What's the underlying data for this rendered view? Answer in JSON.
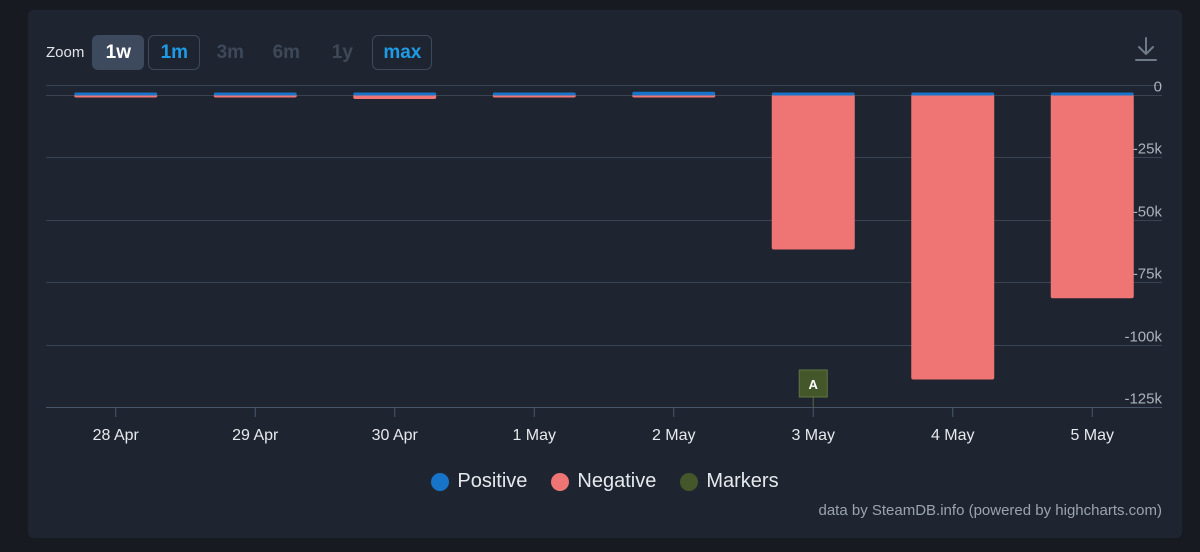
{
  "toolbar": {
    "zoom_label": "Zoom",
    "zoom_buttons": [
      {
        "label": "1w",
        "state": "active"
      },
      {
        "label": "1m",
        "state": "enabled"
      },
      {
        "label": "3m",
        "state": "disabled"
      },
      {
        "label": "6m",
        "state": "disabled"
      },
      {
        "label": "1y",
        "state": "disabled"
      },
      {
        "label": "max",
        "state": "enabled"
      }
    ],
    "download_icon": "download-icon"
  },
  "chart_data": {
    "type": "bar",
    "categories": [
      "28 Apr",
      "29 Apr",
      "30 Apr",
      "1 May",
      "2 May",
      "3 May",
      "4 May",
      "5 May"
    ],
    "series": [
      {
        "name": "Positive",
        "color": "#1874c8",
        "values": [
          500,
          700,
          800,
          400,
          1100,
          200,
          100,
          100
        ]
      },
      {
        "name": "Negative",
        "color": "#ef7575",
        "values": [
          -300,
          -400,
          -1800,
          -500,
          -300,
          -62000,
          -114000,
          -81500
        ]
      }
    ],
    "markers": [
      {
        "category": "3 May",
        "label": "A",
        "color": "#44572b"
      }
    ],
    "yticks": [
      {
        "value": 0,
        "label": "0"
      },
      {
        "value": -25000,
        "label": "-25k"
      },
      {
        "value": -50000,
        "label": "-50k"
      },
      {
        "value": -75000,
        "label": "-75k"
      },
      {
        "value": -100000,
        "label": "-100k"
      },
      {
        "value": -125000,
        "label": "-125k"
      }
    ],
    "ylim": [
      -125000,
      25000
    ],
    "grid": true,
    "legend": [
      {
        "name": "Positive",
        "color": "#1874c8"
      },
      {
        "name": "Negative",
        "color": "#ef7575"
      },
      {
        "name": "Markers",
        "color": "#44572b"
      }
    ],
    "legend_position": "bottom-center",
    "credit": "data by SteamDB.info (powered by highcharts.com)"
  }
}
